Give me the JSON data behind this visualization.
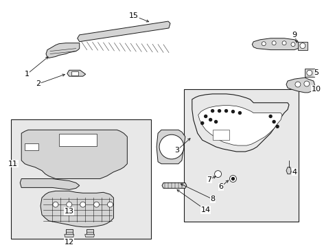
{
  "bg_color": "#ffffff",
  "fig_width": 4.89,
  "fig_height": 3.6,
  "dpi": 100,
  "lc": "#1a1a1a",
  "lw": 0.7,
  "fill_light": "#e8e8e8",
  "fill_mid": "#d4d4d4",
  "fill_white": "#ffffff"
}
